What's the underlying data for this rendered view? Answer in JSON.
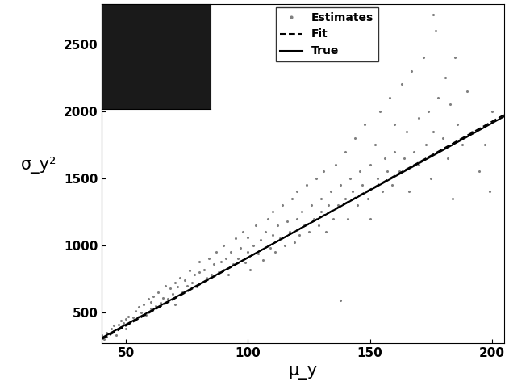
{
  "chart_data": {
    "type": "scatter",
    "x_label": "μ_y",
    "y_label": "σ_y²",
    "xlim": [
      40,
      205
    ],
    "ylim": [
      270,
      2800
    ],
    "xticks": [
      50,
      100,
      150,
      200
    ],
    "yticks": [
      500,
      1000,
      1500,
      2000,
      2500
    ],
    "legend": "upper center",
    "series": [
      {
        "name": "Estimates",
        "type": "scatter",
        "color": "#808080",
        "marker": "dot",
        "x": [
          40,
          41,
          42,
          42,
          43,
          44,
          45,
          45,
          46,
          47,
          48,
          48,
          49,
          50,
          50,
          51,
          52,
          53,
          54,
          55,
          55,
          56,
          57,
          58,
          59,
          60,
          60,
          61,
          62,
          63,
          64,
          65,
          66,
          67,
          68,
          69,
          70,
          70,
          71,
          72,
          73,
          74,
          75,
          76,
          77,
          78,
          79,
          80,
          80,
          81,
          82,
          83,
          84,
          85,
          86,
          87,
          88,
          89,
          90,
          90,
          91,
          92,
          93,
          94,
          95,
          96,
          97,
          98,
          99,
          100,
          100,
          101,
          102,
          103,
          104,
          105,
          106,
          107,
          108,
          109,
          110,
          110,
          111,
          112,
          113,
          114,
          115,
          116,
          117,
          118,
          119,
          120,
          120,
          121,
          122,
          123,
          124,
          125,
          126,
          127,
          128,
          129,
          130,
          130,
          131,
          132,
          133,
          134,
          135,
          136,
          137,
          138,
          138,
          140,
          140,
          141,
          142,
          143,
          144,
          145,
          146,
          147,
          148,
          149,
          150,
          150,
          152,
          153,
          154,
          155,
          156,
          157,
          158,
          159,
          160,
          160,
          162,
          163,
          164,
          165,
          166,
          167,
          168,
          170,
          170,
          172,
          173,
          174,
          175,
          176,
          176,
          177,
          178,
          180,
          181,
          182,
          183,
          185,
          186,
          188,
          190,
          192,
          195,
          197,
          199,
          184,
          200
        ],
        "values": [
          330,
          300,
          350,
          320,
          340,
          380,
          360,
          400,
          330,
          410,
          390,
          440,
          420,
          450,
          380,
          470,
          430,
          460,
          510,
          470,
          540,
          500,
          560,
          480,
          600,
          530,
          580,
          620,
          550,
          650,
          570,
          610,
          700,
          600,
          680,
          640,
          720,
          560,
          690,
          760,
          650,
          740,
          700,
          810,
          720,
          780,
          690,
          800,
          880,
          720,
          820,
          760,
          900,
          780,
          860,
          950,
          800,
          880,
          820,
          1000,
          900,
          780,
          950,
          860,
          1050,
          900,
          980,
          1100,
          870,
          950,
          1060,
          820,
          1000,
          1150,
          940,
          1040,
          890,
          1100,
          1200,
          980,
          1080,
          1250,
          950,
          1150,
          1050,
          1300,
          1000,
          1180,
          1100,
          1350,
          1020,
          1200,
          1400,
          1080,
          1250,
          1150,
          1450,
          1100,
          1300,
          1200,
          1500,
          1150,
          1350,
          1250,
          1550,
          1100,
          1300,
          1400,
          1200,
          1600,
          1300,
          590,
          1450,
          1350,
          1700,
          1200,
          1500,
          1400,
          1800,
          1300,
          1550,
          1450,
          1900,
          1350,
          1600,
          1200,
          1750,
          1500,
          2000,
          1400,
          1650,
          1550,
          2100,
          1450,
          1700,
          1900,
          1550,
          2200,
          1650,
          1850,
          1400,
          2300,
          1700,
          1950,
          1600,
          2400,
          1750,
          2000,
          1500,
          2720,
          1850,
          2600,
          2100,
          1800,
          2250,
          1650,
          2050,
          2400,
          1900,
          1750,
          2150,
          1850,
          1550,
          1750,
          1400,
          1350,
          2000
        ]
      },
      {
        "name": "Fit",
        "type": "line",
        "color": "#000000",
        "line_style": "dashed",
        "x": [
          40,
          205
        ],
        "values": [
          300,
          1972
        ]
      },
      {
        "name": "True",
        "type": "line",
        "color": "#000000",
        "line_style": "solid",
        "x": [
          40,
          205
        ],
        "values": [
          310,
          1960
        ]
      }
    ]
  }
}
